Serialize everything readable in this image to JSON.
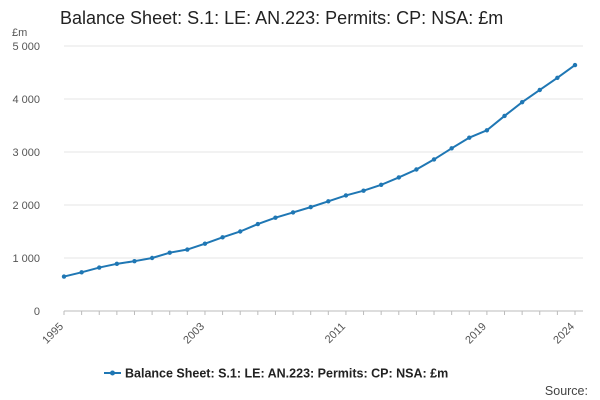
{
  "chart_data": {
    "type": "line",
    "title": "Balance Sheet: S.1: LE: AN.223: Permits: CP: NSA: £m",
    "ylabel": "£m",
    "xlabel": "",
    "x": [
      1995,
      1996,
      1997,
      1998,
      1999,
      2000,
      2001,
      2002,
      2003,
      2004,
      2005,
      2006,
      2007,
      2008,
      2009,
      2010,
      2011,
      2012,
      2013,
      2014,
      2015,
      2016,
      2017,
      2018,
      2019,
      2020,
      2021,
      2022,
      2023,
      2024
    ],
    "series": [
      {
        "name": "Balance Sheet: S.1: LE: AN.223: Permits: CP: NSA: £m",
        "color": "#1f77b4",
        "values": [
          650,
          730,
          820,
          890,
          940,
          1000,
          1100,
          1160,
          1270,
          1390,
          1500,
          1640,
          1760,
          1860,
          1960,
          2070,
          2180,
          2270,
          2380,
          2520,
          2670,
          2860,
          3070,
          3270,
          3410,
          3680,
          3940,
          4170,
          4400,
          4640
        ]
      }
    ],
    "xticks": [
      "1995",
      "2003",
      "2011",
      "2019",
      "2024"
    ],
    "yticks": [
      "0",
      "1 000",
      "2 000",
      "3 000",
      "4 000",
      "5 000"
    ],
    "ytick_values": [
      0,
      1000,
      2000,
      3000,
      4000,
      5000
    ],
    "ylim": [
      0,
      5000
    ],
    "xlim": [
      1995,
      2024
    ],
    "grid": "horizontal",
    "legend_position": "bottom-center",
    "source_label": "Source:"
  }
}
